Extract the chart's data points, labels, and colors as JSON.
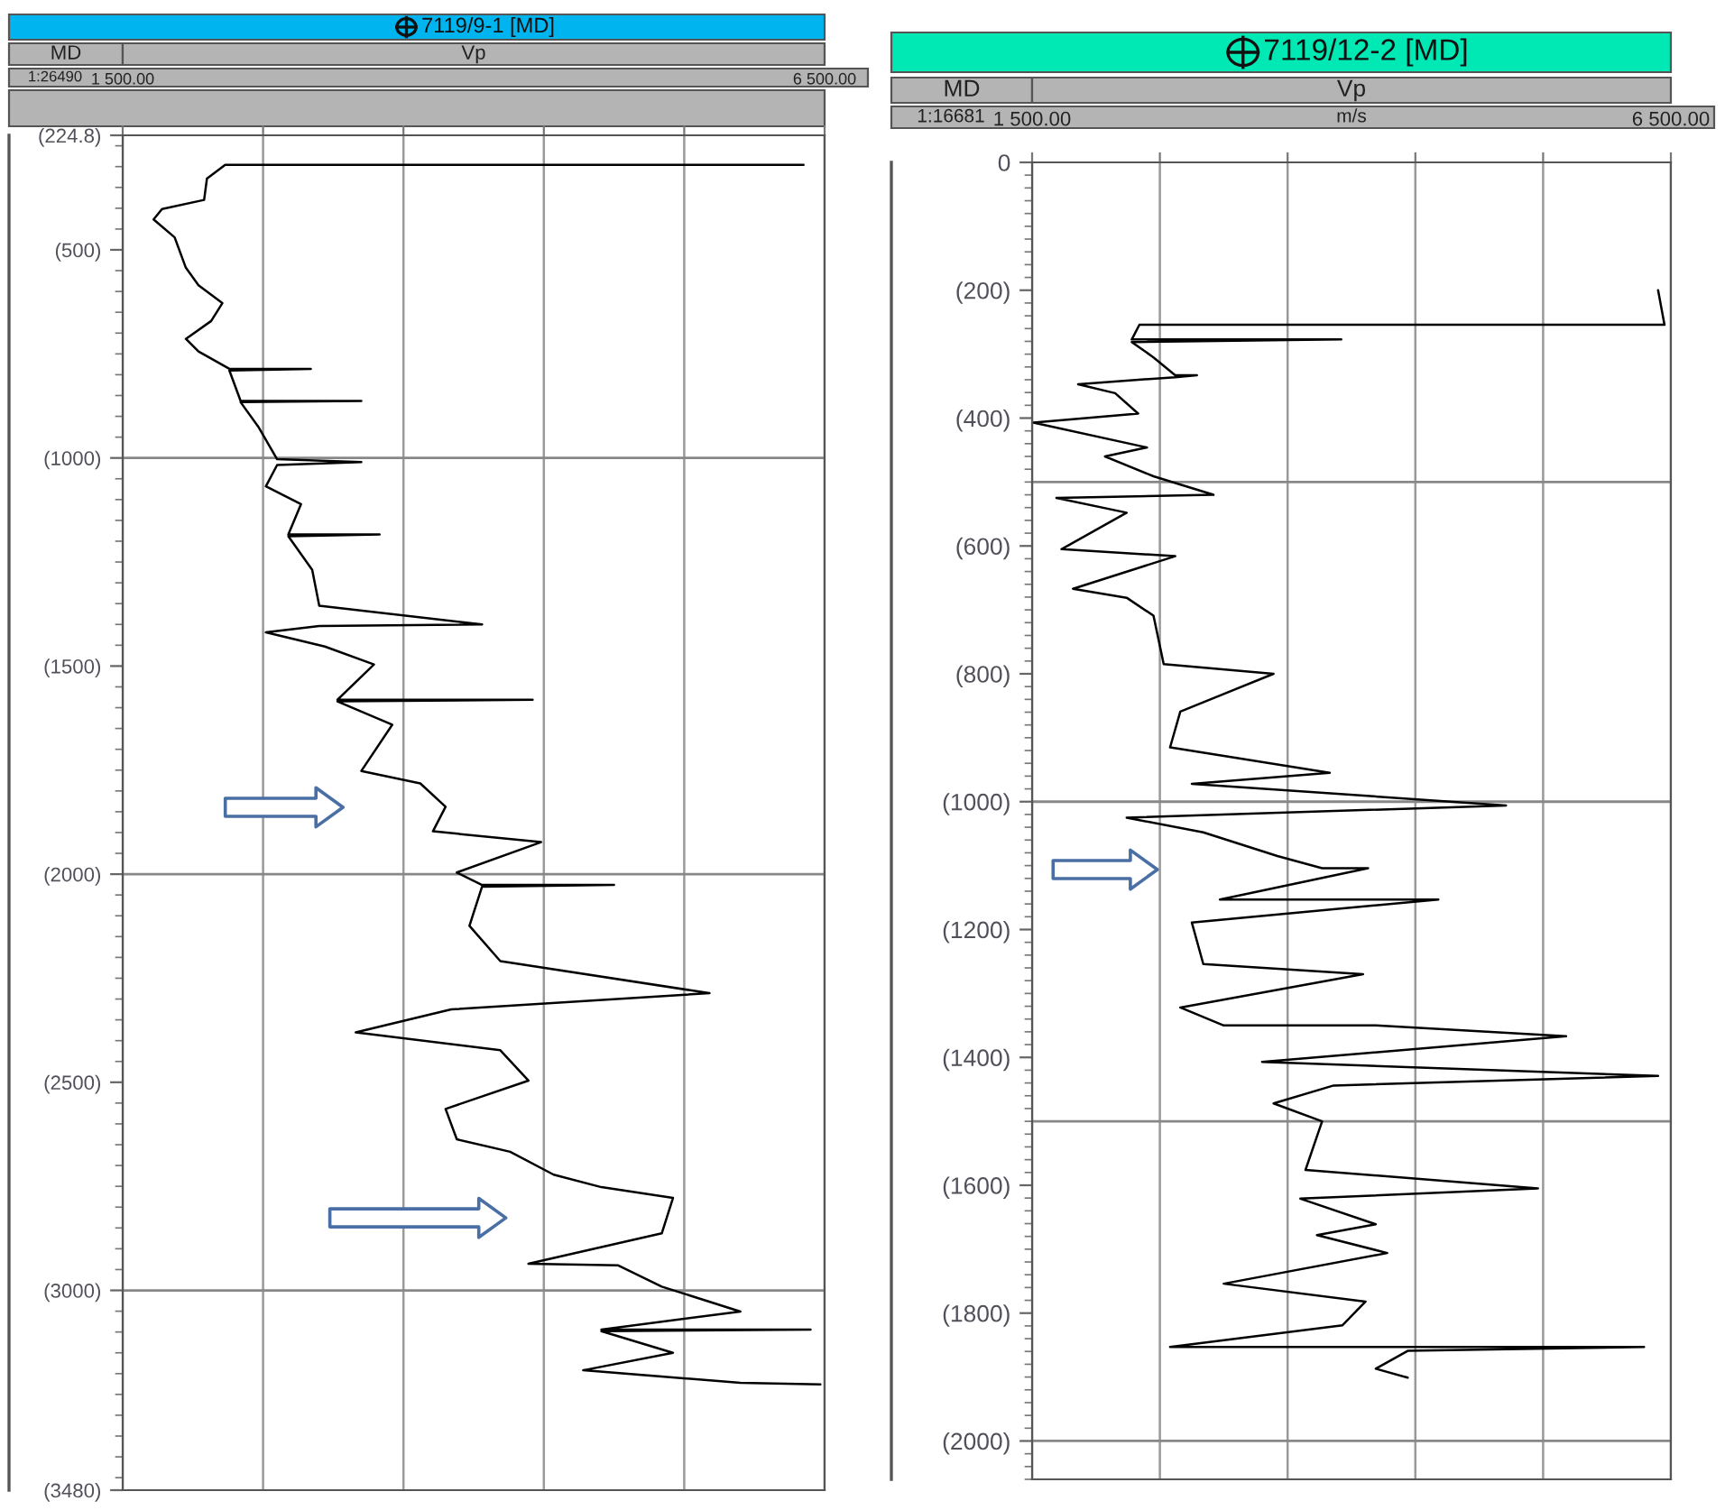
{
  "chart_data": [
    {
      "type": "line",
      "title": "7119/9-1 [MD]",
      "xlabel": "Vp",
      "ylabel": "MD",
      "annotations": [
        "1:26490"
      ],
      "xlim": [
        1500,
        6500
      ],
      "xticks": [
        {
          "value": 1500,
          "label": "1 500.00"
        },
        {
          "value": 2500,
          "label": null
        },
        {
          "value": 3500,
          "label": null
        },
        {
          "value": 4500,
          "label": null
        },
        {
          "value": 5500,
          "label": null
        },
        {
          "value": 6500,
          "label": "6 500.00"
        }
      ],
      "ylim": [
        3480,
        224.8
      ],
      "yticks": [
        {
          "value": 224.8,
          "label": "(224.8)"
        },
        {
          "value": 500,
          "label": "(500)"
        },
        {
          "value": 1000,
          "label": "(1000)"
        },
        {
          "value": 1500,
          "label": "(1500)"
        },
        {
          "value": 2000,
          "label": "(2000)"
        },
        {
          "value": 2500,
          "label": "(2500)"
        },
        {
          "value": 3000,
          "label": "(3000)"
        },
        {
          "value": 3480,
          "label": "(3480)"
        }
      ],
      "grid": "x",
      "orientation": "horizontal",
      "ref_lines": [
        {
          "axis": "y",
          "value": 1000
        },
        {
          "axis": "y",
          "value": 2000
        },
        {
          "axis": "y",
          "value": 3000
        }
      ],
      "series": [
        {
          "color": "#000000",
          "values": [
            6350,
            2230,
            2100,
            2080,
            1780,
            1720,
            1870,
            1950,
            2040,
            2210,
            2130,
            1950,
            2040,
            2260,
            2840,
            2260,
            2340,
            3200,
            2340,
            2470,
            2600,
            3200,
            2600,
            2520,
            2770,
            2680,
            3330,
            2680,
            2850,
            2900,
            4060,
            2900,
            2520,
            2940,
            3290,
            3030,
            4420,
            3030,
            3420,
            3200,
            3620,
            3800,
            3710,
            4480,
            3880,
            4060,
            5000,
            4060,
            3970,
            4190,
            5680,
            3840,
            3160,
            4190,
            4390,
            3800,
            3880,
            4260,
            4570,
            4910,
            5420,
            5340,
            4390,
            5030,
            5340,
            5900,
            4910,
            6400,
            4910,
            5420,
            4780,
            5900,
            6470
          ],
          "x": [
            296,
            296,
            329,
            380,
            402,
            427,
            470,
            543,
            585,
            628,
            671,
            714,
            744,
            786,
            786,
            790,
            863,
            863,
            866,
            927,
            1003,
            1010,
            1017,
            1068,
            1111,
            1184,
            1184,
            1188,
            1269,
            1355,
            1400,
            1404,
            1419,
            1453,
            1496,
            1581,
            1581,
            1585,
            1641,
            1752,
            1782,
            1838,
            1897,
            1923,
            1996,
            2026,
            2026,
            2030,
            2124,
            2209,
            2286,
            2325,
            2380,
            2423,
            2496,
            2564,
            2637,
            2667,
            2722,
            2752,
            2778,
            2863,
            2936,
            2940,
            2991,
            3051,
            3094,
            3094,
            3098,
            3150,
            3192,
            3222,
            3226
          ]
        }
      ]
    },
    {
      "type": "line",
      "title": "7119/12-2 [MD]",
      "xlabel": "Vp",
      "ylabel": "MD",
      "annotations": [
        "1:16681",
        "m/s"
      ],
      "xlim": [
        1500,
        6500
      ],
      "xticks": [
        {
          "value": 1500,
          "label": "1 500.00"
        },
        {
          "value": 2500,
          "label": null
        },
        {
          "value": 3500,
          "label": null
        },
        {
          "value": 4500,
          "label": null
        },
        {
          "value": 5500,
          "label": null
        },
        {
          "value": 6500,
          "label": "6 500.00"
        }
      ],
      "ylim": [
        2060,
        0
      ],
      "yticks": [
        {
          "value": 0,
          "label": "0"
        },
        {
          "value": 200,
          "label": "(200)"
        },
        {
          "value": 400,
          "label": "(400)"
        },
        {
          "value": 600,
          "label": "(600)"
        },
        {
          "value": 800,
          "label": "(800)"
        },
        {
          "value": 1000,
          "label": "(1000)"
        },
        {
          "value": 1200,
          "label": "(1200)"
        },
        {
          "value": 1400,
          "label": "(1400)"
        },
        {
          "value": 1600,
          "label": "(1600)"
        },
        {
          "value": 1800,
          "label": "(1800)"
        },
        {
          "value": 2000,
          "label": "(2000)"
        }
      ],
      "grid": "x",
      "orientation": "horizontal",
      "ref_lines": [
        {
          "axis": "y",
          "value": 500
        },
        {
          "axis": "y",
          "value": 1000
        },
        {
          "axis": "y",
          "value": 1500
        },
        {
          "axis": "y",
          "value": 2000
        }
      ],
      "series": [
        {
          "color": "#000000",
          "values": [
            6400,
            6450,
            2340,
            2280,
            3920,
            2280,
            2450,
            2620,
            2790,
            2620,
            1860,
            2150,
            2330,
            1510,
            2400,
            2070,
            2450,
            2920,
            1690,
            2240,
            1730,
            2620,
            1820,
            2240,
            2450,
            2530,
            3390,
            2660,
            2580,
            3830,
            2750,
            5210,
            2240,
            2840,
            3420,
            3770,
            4130,
            2970,
            4680,
            2750,
            2840,
            4090,
            2660,
            3000,
            4190,
            5680,
            3300,
            6400,
            3860,
            3390,
            3770,
            3640,
            5460,
            3600,
            4190,
            3730,
            4280,
            3000,
            4110,
            3930,
            2580,
            6290,
            4440,
            4190,
            4440
          ],
          "x": [
            200,
            254,
            254,
            277,
            277,
            281,
            305,
            333,
            333,
            336,
            347,
            361,
            393,
            407,
            446,
            460,
            491,
            520,
            525,
            548,
            605,
            616,
            667,
            681,
            709,
            785,
            800,
            859,
            915,
            955,
            972,
            1006,
            1025,
            1048,
            1085,
            1104,
            1104,
            1153,
            1153,
            1189,
            1254,
            1270,
            1322,
            1350,
            1350,
            1367,
            1407,
            1429,
            1444,
            1472,
            1500,
            1576,
            1605,
            1621,
            1661,
            1678,
            1706,
            1754,
            1782,
            1819,
            1853,
            1853,
            1859,
            1887,
            1901
          ]
        }
      ]
    }
  ]
}
